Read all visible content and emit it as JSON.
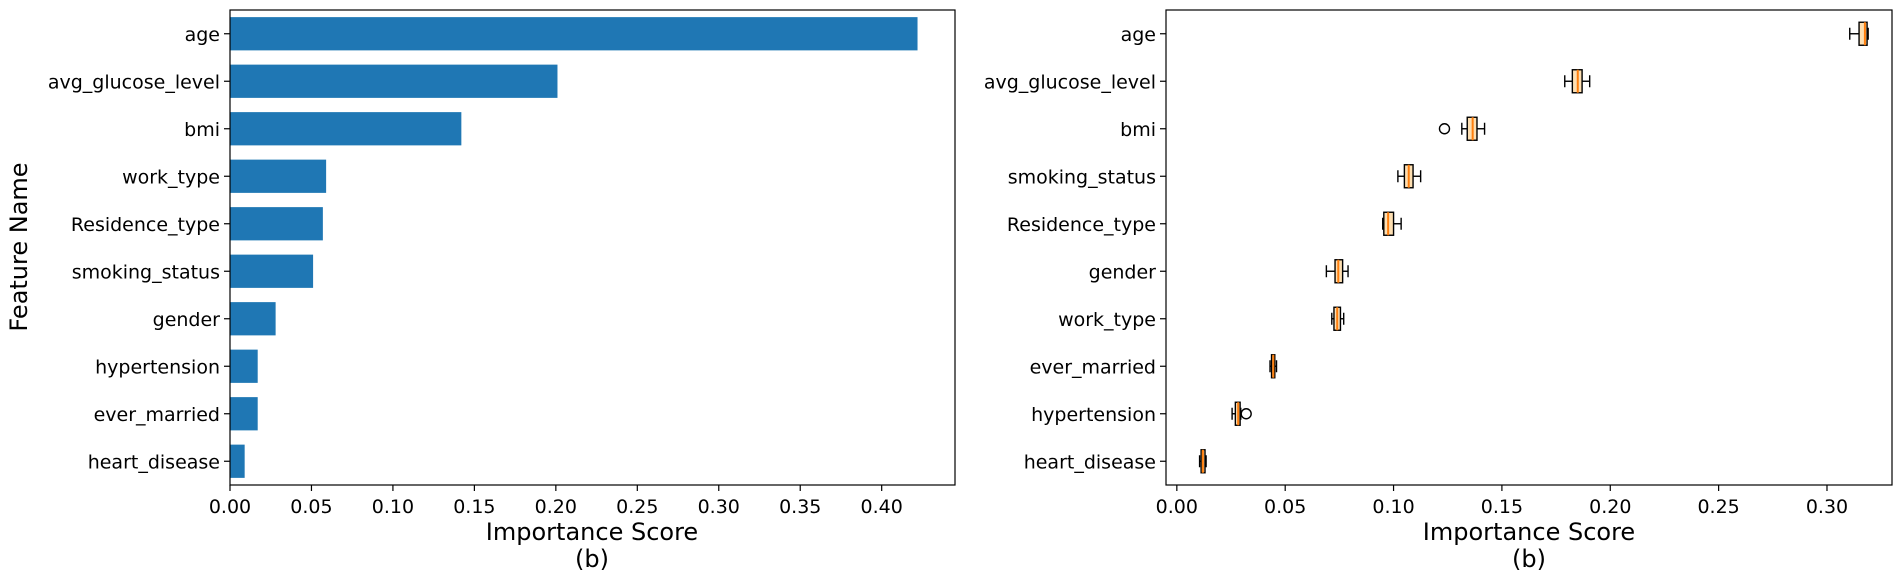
{
  "chart_data": [
    {
      "type": "bar",
      "orientation": "horizontal",
      "categories": [
        "age",
        "avg_glucose_level",
        "bmi",
        "work_type",
        "Residence_type",
        "smoking_status",
        "gender",
        "hypertension",
        "ever_married",
        "heart_disease"
      ],
      "values": [
        0.422,
        0.201,
        0.142,
        0.059,
        0.057,
        0.051,
        0.028,
        0.017,
        0.017,
        0.009
      ],
      "color": "#1f77b4",
      "xlabel": "Importance Score",
      "ylabel": "Feature Name",
      "caption": "(b)",
      "xlim": [
        0,
        0.445
      ],
      "xticks": [
        "0.00",
        "0.05",
        "0.10",
        "0.15",
        "0.20",
        "0.25",
        "0.30",
        "0.35",
        "0.40"
      ],
      "grid": false
    },
    {
      "type": "boxplot",
      "orientation": "horizontal",
      "categories": [
        "age",
        "avg_glucose_level",
        "bmi",
        "smoking_status",
        "Residence_type",
        "gender",
        "work_type",
        "ever_married",
        "hypertension",
        "heart_disease"
      ],
      "boxes": [
        {
          "whislo": 0.3105,
          "q1": 0.3148,
          "med": 0.3175,
          "q3": 0.3185,
          "whishi": 0.319,
          "fliers": []
        },
        {
          "whislo": 0.179,
          "q1": 0.1825,
          "med": 0.185,
          "q3": 0.187,
          "whishi": 0.1905,
          "fliers": []
        },
        {
          "whislo": 0.1315,
          "q1": 0.134,
          "med": 0.1365,
          "q3": 0.1385,
          "whishi": 0.142,
          "fliers": [
            0.1235
          ]
        },
        {
          "whislo": 0.102,
          "q1": 0.105,
          "med": 0.107,
          "q3": 0.109,
          "whishi": 0.1125,
          "fliers": []
        },
        {
          "whislo": 0.095,
          "q1": 0.0955,
          "med": 0.0975,
          "q3": 0.1,
          "whishi": 0.1035,
          "fliers": []
        },
        {
          "whislo": 0.069,
          "q1": 0.073,
          "med": 0.0745,
          "q3": 0.0765,
          "whishi": 0.079,
          "fliers": []
        },
        {
          "whislo": 0.0715,
          "q1": 0.0725,
          "med": 0.074,
          "q3": 0.0755,
          "whishi": 0.077,
          "fliers": []
        },
        {
          "whislo": 0.043,
          "q1": 0.0437,
          "med": 0.0445,
          "q3": 0.0452,
          "whishi": 0.046,
          "fliers": []
        },
        {
          "whislo": 0.0255,
          "q1": 0.027,
          "med": 0.0283,
          "q3": 0.0292,
          "whishi": 0.0295,
          "fliers": [
            0.032
          ]
        },
        {
          "whislo": 0.0105,
          "q1": 0.0112,
          "med": 0.012,
          "q3": 0.013,
          "whishi": 0.0135,
          "fliers": []
        }
      ],
      "box_color": "#fddfb2",
      "median_color": "#ff7f0e",
      "xlabel": "Importance Score",
      "caption": "(b)",
      "xlim": [
        -0.005,
        0.33
      ],
      "xticks": [
        "0.00",
        "0.05",
        "0.10",
        "0.15",
        "0.20",
        "0.25",
        "0.30"
      ],
      "grid": false
    }
  ]
}
